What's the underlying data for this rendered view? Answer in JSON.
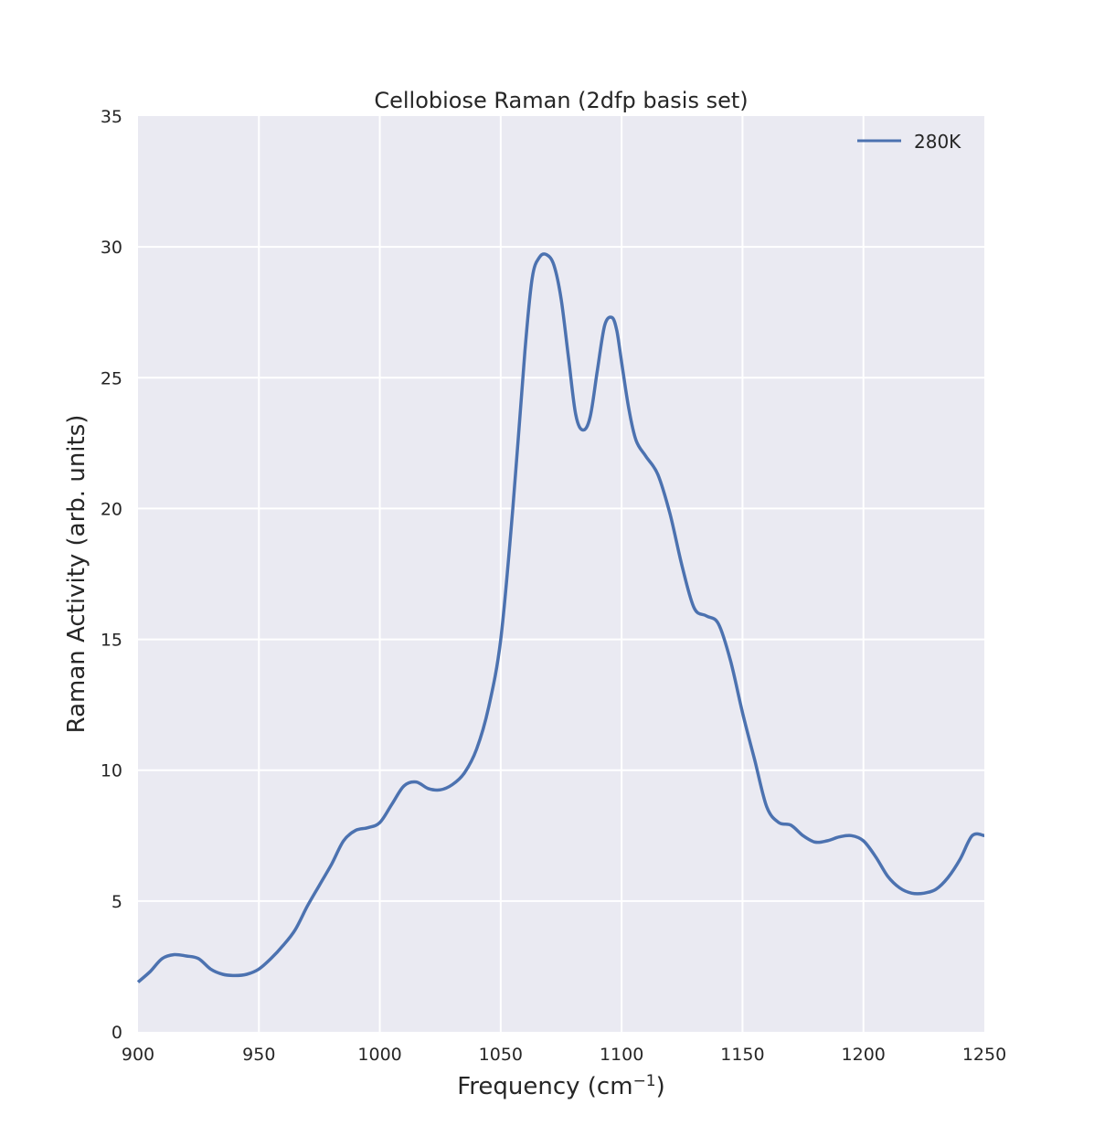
{
  "chart_data": {
    "type": "line",
    "title": "Cellobiose Raman (2dfp basis set)",
    "xlabel": "Frequency (cm",
    "xlabel_sup": "−1",
    "xlabel_end": ")",
    "ylabel": "Raman Activity (arb. units)",
    "xlim": [
      900,
      1250
    ],
    "ylim": [
      0,
      35
    ],
    "xticks": [
      900,
      950,
      1000,
      1050,
      1100,
      1150,
      1200,
      1250
    ],
    "yticks": [
      0,
      5,
      10,
      15,
      20,
      25,
      30,
      35
    ],
    "grid": true,
    "legend_position": "top-right",
    "series": [
      {
        "name": "280K",
        "color": "#4c72b0",
        "x": [
          900,
          905,
          910,
          915,
          920,
          925,
          930,
          935,
          940,
          945,
          950,
          955,
          960,
          965,
          970,
          975,
          980,
          985,
          990,
          995,
          1000,
          1005,
          1010,
          1015,
          1020,
          1025,
          1030,
          1035,
          1040,
          1045,
          1050,
          1055,
          1060,
          1063,
          1066,
          1069,
          1072,
          1075,
          1078,
          1081,
          1084,
          1087,
          1090,
          1093,
          1096,
          1098,
          1100,
          1103,
          1106,
          1110,
          1115,
          1120,
          1125,
          1130,
          1135,
          1140,
          1145,
          1150,
          1155,
          1160,
          1165,
          1170,
          1175,
          1180,
          1185,
          1190,
          1195,
          1200,
          1205,
          1210,
          1215,
          1220,
          1225,
          1230,
          1235,
          1240,
          1245,
          1250
        ],
        "y": [
          1.9,
          2.3,
          2.8,
          2.95,
          2.9,
          2.8,
          2.4,
          2.2,
          2.15,
          2.2,
          2.4,
          2.8,
          3.3,
          3.9,
          4.8,
          5.6,
          6.4,
          7.3,
          7.7,
          7.8,
          8.0,
          8.7,
          9.4,
          9.55,
          9.3,
          9.25,
          9.45,
          9.9,
          10.8,
          12.4,
          15.0,
          20.0,
          26.0,
          28.8,
          29.6,
          29.7,
          29.3,
          28.0,
          25.8,
          23.6,
          23.0,
          23.5,
          25.3,
          27.0,
          27.3,
          26.8,
          25.6,
          23.8,
          22.6,
          22.0,
          21.3,
          19.8,
          17.8,
          16.2,
          15.9,
          15.6,
          14.2,
          12.2,
          10.4,
          8.6,
          8.0,
          7.9,
          7.5,
          7.25,
          7.3,
          7.45,
          7.5,
          7.3,
          6.7,
          5.95,
          5.5,
          5.3,
          5.3,
          5.45,
          5.9,
          6.6,
          7.5,
          7.5
        ]
      }
    ]
  }
}
